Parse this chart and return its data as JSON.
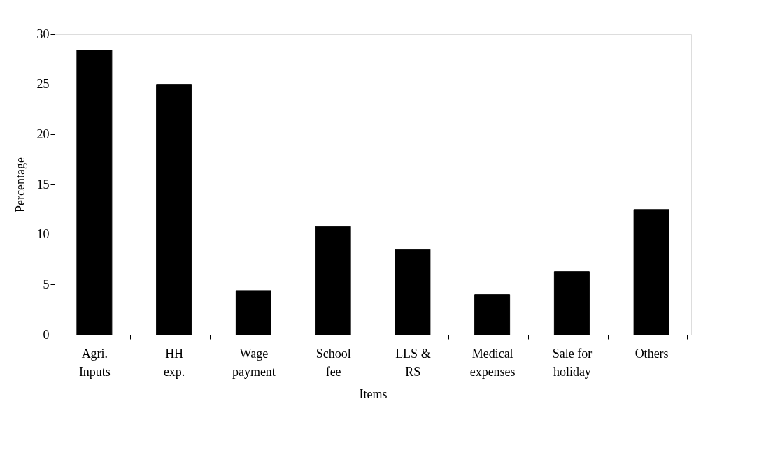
{
  "chart_data": {
    "type": "bar",
    "xlabel": "Items",
    "ylabel": "Percentage",
    "categories": [
      "Agri. Inputs",
      "HH exp.",
      "Wage payment",
      "School fee",
      "LLS & RS",
      "Medical expenses",
      "Sale for holiday",
      "Others"
    ],
    "values": [
      28.4,
      25,
      4.4,
      10.8,
      8.5,
      4.0,
      6.3,
      12.5
    ],
    "color": "#000000",
    "ylim": [
      0,
      30
    ],
    "yticks": [
      0,
      5,
      10,
      15,
      20,
      25,
      30
    ],
    "grid": false
  }
}
